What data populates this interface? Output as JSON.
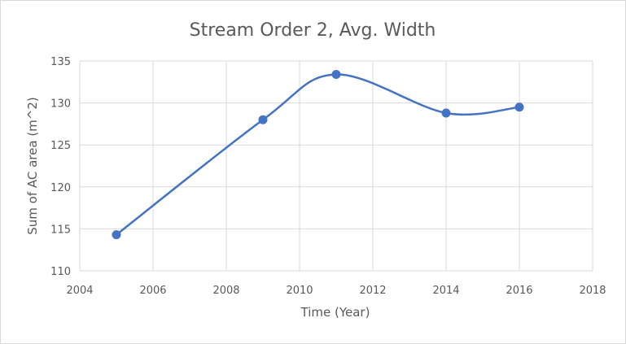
{
  "chart_data": {
    "type": "line",
    "title": "Stream Order 2, Avg. Width",
    "xlabel": "Time (Year)",
    "ylabel": "Sum of AC area (m^2)",
    "xlim": [
      2004,
      2018
    ],
    "ylim": [
      110,
      135
    ],
    "x_ticks": [
      2004,
      2006,
      2008,
      2010,
      2012,
      2014,
      2016,
      2018
    ],
    "y_ticks": [
      110,
      115,
      120,
      125,
      130,
      135
    ],
    "grid": true,
    "smoothed": true,
    "legend": "none",
    "series": [
      {
        "color": "#4472c4",
        "x": [
          2005,
          2009,
          2011,
          2014,
          2016
        ],
        "y": [
          114.3,
          128.0,
          133.4,
          128.8,
          129.5
        ]
      }
    ]
  }
}
